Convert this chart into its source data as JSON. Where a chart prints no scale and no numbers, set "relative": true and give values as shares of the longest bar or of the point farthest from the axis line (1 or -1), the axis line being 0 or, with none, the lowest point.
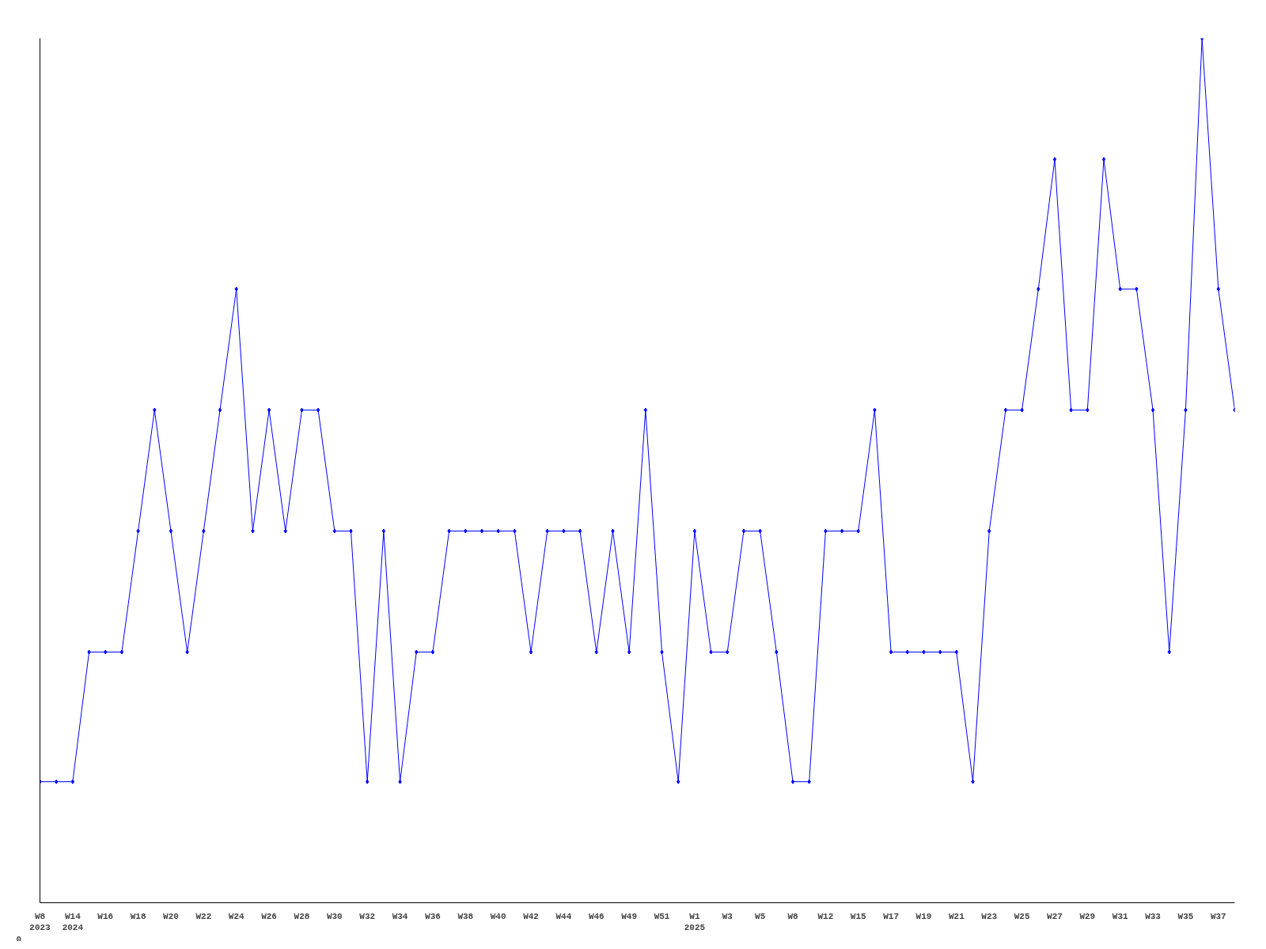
{
  "chart_data": {
    "type": "line",
    "relative": true,
    "color": "#0000ff",
    "marker": "diamond",
    "grid": false,
    "annotations": [
      "0"
    ],
    "categories": [
      "W8\n2023",
      null,
      "W14\n2024",
      null,
      "W16",
      null,
      "W18",
      null,
      "W20",
      null,
      "W22",
      null,
      "W24",
      null,
      "W26",
      null,
      "W28",
      null,
      "W30",
      null,
      "W32",
      null,
      "W34",
      null,
      "W36",
      null,
      "W38",
      null,
      "W40",
      null,
      "W42",
      null,
      "W44",
      null,
      "W46",
      null,
      "W49",
      null,
      "W51",
      null,
      "W1\n2025",
      null,
      "W3",
      null,
      "W5",
      null,
      "W8",
      null,
      "W12",
      null,
      "W15",
      null,
      "W17",
      null,
      "W19",
      null,
      "W21",
      null,
      "W23",
      null,
      "W25",
      null,
      "W27",
      null,
      "W29",
      null,
      "W31",
      null,
      "W33",
      null,
      "W35",
      null,
      "W37",
      null
    ],
    "values": [
      0.14,
      0.14,
      0.14,
      0.29,
      0.29,
      0.29,
      0.43,
      0.57,
      0.43,
      0.29,
      0.43,
      0.57,
      0.71,
      0.43,
      0.57,
      0.43,
      0.57,
      0.57,
      0.43,
      0.43,
      0.14,
      0.43,
      0.14,
      0.29,
      0.29,
      0.43,
      0.43,
      0.43,
      0.43,
      0.43,
      0.29,
      0.43,
      0.43,
      0.43,
      0.29,
      0.43,
      0.29,
      0.57,
      0.29,
      0.14,
      0.43,
      0.29,
      0.29,
      0.43,
      0.43,
      0.29,
      0.14,
      0.14,
      0.43,
      0.43,
      0.43,
      0.57,
      0.29,
      0.29,
      0.29,
      0.29,
      0.29,
      0.14,
      0.43,
      0.57,
      0.57,
      0.71,
      0.86,
      0.57,
      0.57,
      0.86,
      0.71,
      0.71,
      0.57,
      0.29,
      0.57,
      1,
      0.71,
      0.57
    ]
  }
}
